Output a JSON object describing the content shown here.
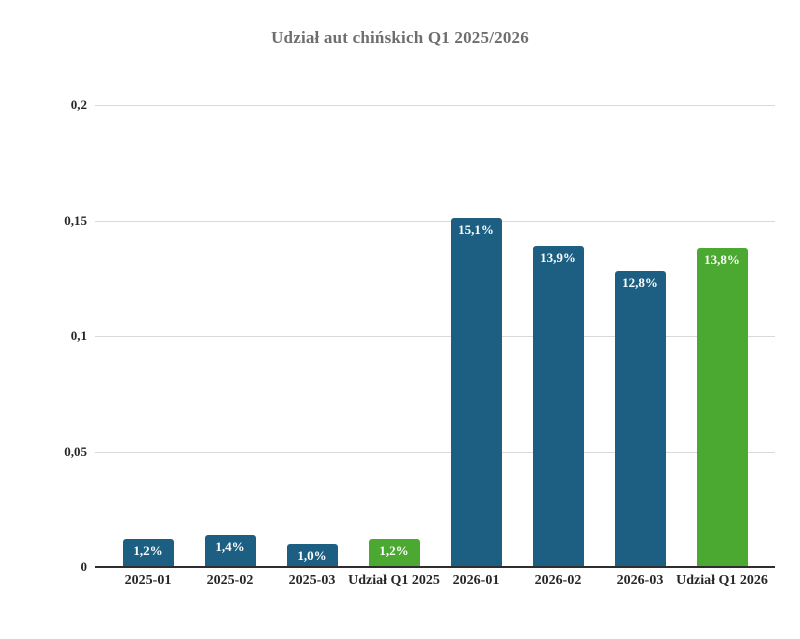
{
  "chart_data": {
    "type": "bar",
    "title": "Udział aut chińskich Q1 2025/2026",
    "categories": [
      "2025-01",
      "2025-02",
      "2025-03",
      "Udział Q1 2025",
      "2026-01",
      "2026-02",
      "2026-03",
      "Udział Q1 2026"
    ],
    "values": [
      0.012,
      0.014,
      0.01,
      0.012,
      0.151,
      0.139,
      0.128,
      0.138
    ],
    "value_labels": [
      "1,2%",
      "1,4%",
      "1,0%",
      "1,2%",
      "15,1%",
      "13,9%",
      "12,8%",
      "13,8%"
    ],
    "bar_colors": [
      "#1c5f83",
      "#1c5f83",
      "#1c5f83",
      "#4ba831",
      "#1c5f83",
      "#1c5f83",
      "#1c5f83",
      "#4ba831"
    ],
    "y_ticks": [
      {
        "label": "0",
        "value": 0
      },
      {
        "label": "0,05",
        "value": 0.05
      },
      {
        "label": "0,1",
        "value": 0.1
      },
      {
        "label": "0,15",
        "value": 0.15
      },
      {
        "label": "0,2",
        "value": 0.2
      }
    ],
    "ylim": [
      0,
      0.2
    ],
    "xlabel": "",
    "ylabel": "",
    "grid": true,
    "legend": false
  },
  "colors": {
    "bar_blue": "#1c5f83",
    "bar_green": "#4ba831",
    "gridline": "#d9d9d9",
    "axis": "#2e2e2e",
    "title_text": "#6e6e6e",
    "tick_text": "#262626",
    "value_label_text": "#ffffff",
    "background": "#ffffff"
  }
}
